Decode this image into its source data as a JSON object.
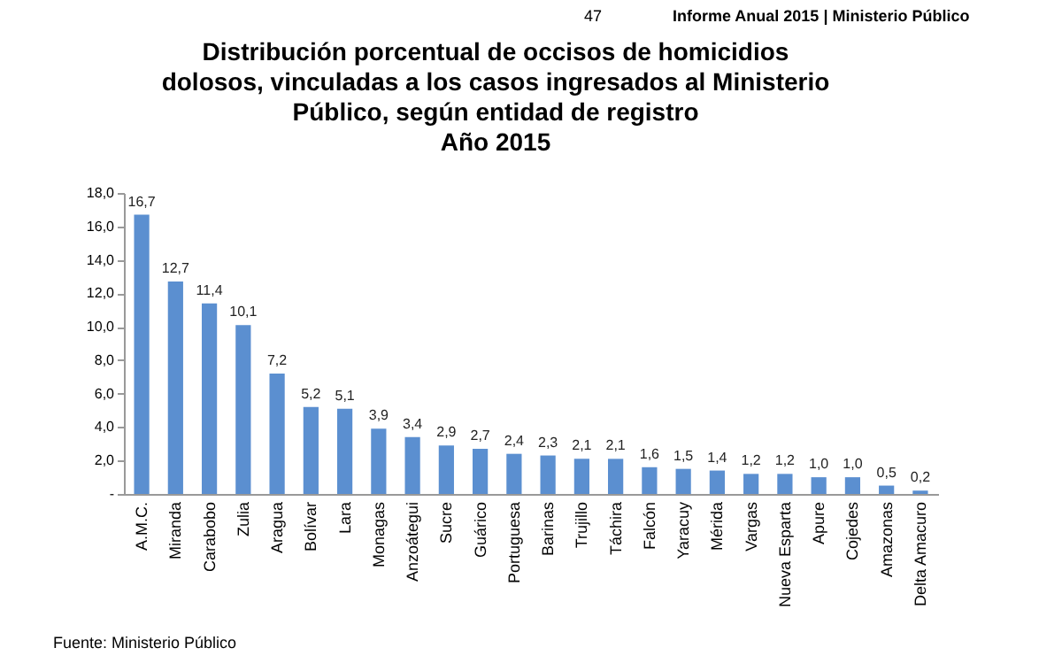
{
  "chart_data": {
    "type": "bar",
    "title": "Distribución porcentual de occisos de homicidios dolosos, vinculadas a los casos ingresados al Ministerio Público, según entidad de registro",
    "subtitle": "Año 2015",
    "annotations": [
      "47",
      "Informe Anual 2015 | Ministerio Público",
      "Fuente: Ministerio Público"
    ],
    "categories": [
      "A.M.C.",
      "Miranda",
      "Carabobo",
      "Zulia",
      "Aragua",
      "Bolívar",
      "Lara",
      "Monagas",
      "Anzoátegui",
      "Sucre",
      "Guárico",
      "Portuguesa",
      "Barinas",
      "Trujillo",
      "Táchira",
      "Falcón",
      "Yaracuy",
      "Mérida",
      "Vargas",
      "Nueva Esparta",
      "Apure",
      "Cojedes",
      "Amazonas",
      "Delta Amacuro"
    ],
    "values": [
      16.7,
      12.7,
      11.4,
      10.1,
      7.2,
      5.2,
      5.1,
      3.9,
      3.4,
      2.9,
      2.7,
      2.4,
      2.3,
      2.1,
      2.1,
      1.6,
      1.5,
      1.4,
      1.2,
      1.2,
      1.0,
      1.0,
      0.5,
      0.2
    ],
    "value_labels": [
      "16,7",
      "12,7",
      "11,4",
      "10,1",
      "7,2",
      "5,2",
      "5,1",
      "3,9",
      "3,4",
      "2,9",
      "2,7",
      "2,4",
      "2,3",
      "2,1",
      "2,1",
      "1,6",
      "1,5",
      "1,4",
      "1,2",
      "1,2",
      "1,0",
      "1,0",
      "0,5",
      "0,2"
    ],
    "color": "#5b8fd0",
    "ylim": [
      0,
      18
    ],
    "yticks": [
      {
        "value": 0,
        "label": "-"
      },
      {
        "value": 2,
        "label": "2,0"
      },
      {
        "value": 4,
        "label": "4,0"
      },
      {
        "value": 6,
        "label": "6,0"
      },
      {
        "value": 8,
        "label": "8,0"
      },
      {
        "value": 10,
        "label": "10,0"
      },
      {
        "value": 12,
        "label": "12,0"
      },
      {
        "value": 14,
        "label": "14,0"
      },
      {
        "value": 16,
        "label": "16,0"
      },
      {
        "value": 18,
        "label": "18,0"
      }
    ],
    "grid": false
  }
}
